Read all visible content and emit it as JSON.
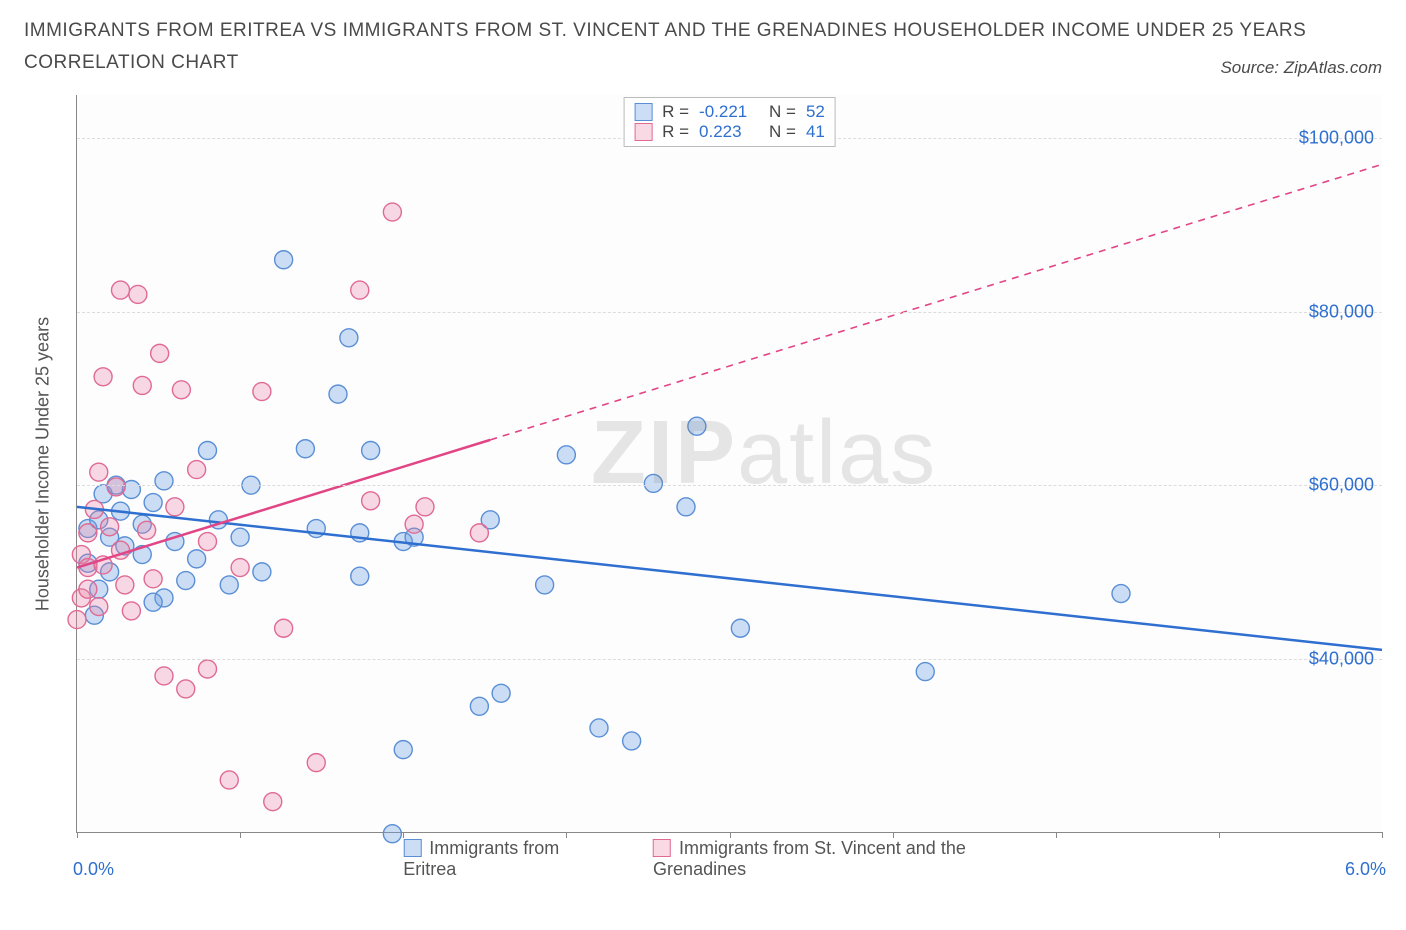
{
  "title_line1": "IMMIGRANTS FROM ERITREA VS IMMIGRANTS FROM ST. VINCENT AND THE GRENADINES HOUSEHOLDER INCOME UNDER 25 YEARS",
  "title_line2": "CORRELATION CHART",
  "source_text": "Source: ZipAtlas.com",
  "y_axis_title": "Householder Income Under 25 years",
  "watermark_bold": "ZIP",
  "watermark_rest": "atlas",
  "x_axis": {
    "min": 0.0,
    "max": 6.0,
    "label_left": "0.0%",
    "label_right": "6.0%",
    "tick_positions": [
      0.0,
      0.75,
      1.5,
      2.25,
      3.0,
      3.75,
      4.5,
      5.25,
      6.0
    ]
  },
  "y_axis": {
    "min": 20000,
    "max": 105000,
    "gridlines": [
      40000,
      60000,
      80000,
      100000
    ],
    "labels": [
      "$40,000",
      "$60,000",
      "$80,000",
      "$100,000"
    ],
    "label_color": "#2f6fd0"
  },
  "grid_color": "#dcdcdc",
  "background_color": "#fdfdfe",
  "axis_color": "#888888",
  "series": [
    {
      "name": "Immigrants from Eritrea",
      "fill": "rgba(110,160,225,0.35)",
      "stroke": "#5a8fd6",
      "line_color": "#2f6fd0",
      "line_width": 2.5,
      "marker_radius": 9,
      "R": "-0.221",
      "N": "52",
      "trend": {
        "x1": 0.0,
        "y1": 57500,
        "x2": 6.0,
        "y2": 41000,
        "dashed": false,
        "solid_until_x": 6.0
      },
      "points": [
        [
          0.05,
          51000
        ],
        [
          0.05,
          55000
        ],
        [
          0.1,
          48000
        ],
        [
          0.1,
          56000
        ],
        [
          0.12,
          59000
        ],
        [
          0.15,
          54000
        ],
        [
          0.15,
          50000
        ],
        [
          0.18,
          60000
        ],
        [
          0.2,
          57000
        ],
        [
          0.22,
          53000
        ],
        [
          0.25,
          59500
        ],
        [
          0.3,
          52000
        ],
        [
          0.3,
          55500
        ],
        [
          0.35,
          58000
        ],
        [
          0.4,
          47000
        ],
        [
          0.4,
          60500
        ],
        [
          0.45,
          53500
        ],
        [
          0.5,
          49000
        ],
        [
          0.55,
          51500
        ],
        [
          0.6,
          64000
        ],
        [
          0.65,
          56000
        ],
        [
          0.7,
          48500
        ],
        [
          0.75,
          54000
        ],
        [
          0.8,
          60000
        ],
        [
          0.85,
          50000
        ],
        [
          0.95,
          86000
        ],
        [
          1.05,
          64200
        ],
        [
          1.1,
          55000
        ],
        [
          1.2,
          70500
        ],
        [
          1.25,
          77000
        ],
        [
          1.3,
          54500
        ],
        [
          1.3,
          49500
        ],
        [
          1.35,
          64000
        ],
        [
          1.45,
          19800
        ],
        [
          1.5,
          53500
        ],
        [
          1.55,
          54000
        ],
        [
          1.5,
          29500
        ],
        [
          1.85,
          34500
        ],
        [
          1.9,
          56000
        ],
        [
          1.95,
          36000
        ],
        [
          2.15,
          48500
        ],
        [
          2.25,
          63500
        ],
        [
          2.4,
          32000
        ],
        [
          2.55,
          30500
        ],
        [
          2.65,
          60200
        ],
        [
          2.8,
          57500
        ],
        [
          2.85,
          66800
        ],
        [
          3.05,
          43500
        ],
        [
          3.9,
          38500
        ],
        [
          4.8,
          47500
        ],
        [
          0.08,
          45000
        ],
        [
          0.35,
          46500
        ]
      ]
    },
    {
      "name": "Immigrants from St. Vincent and the Grenadines",
      "fill": "rgba(235,130,165,0.30)",
      "stroke": "#e06a94",
      "line_color": "#e24585",
      "line_width": 2.5,
      "marker_radius": 9,
      "R": "0.223",
      "N": "41",
      "trend": {
        "x1": 0.0,
        "y1": 50500,
        "x2": 6.0,
        "y2": 97000,
        "dashed": true,
        "solid_until_x": 1.9
      },
      "points": [
        [
          0.0,
          44500
        ],
        [
          0.02,
          47000
        ],
        [
          0.02,
          52000
        ],
        [
          0.05,
          50500
        ],
        [
          0.05,
          48000
        ],
        [
          0.05,
          54500
        ],
        [
          0.08,
          57200
        ],
        [
          0.1,
          61500
        ],
        [
          0.1,
          46000
        ],
        [
          0.12,
          72500
        ],
        [
          0.12,
          50800
        ],
        [
          0.15,
          55200
        ],
        [
          0.18,
          59800
        ],
        [
          0.2,
          82500
        ],
        [
          0.2,
          52500
        ],
        [
          0.22,
          48500
        ],
        [
          0.25,
          45500
        ],
        [
          0.28,
          82000
        ],
        [
          0.3,
          71500
        ],
        [
          0.32,
          54800
        ],
        [
          0.35,
          49200
        ],
        [
          0.38,
          75200
        ],
        [
          0.4,
          38000
        ],
        [
          0.45,
          57500
        ],
        [
          0.48,
          71000
        ],
        [
          0.5,
          36500
        ],
        [
          0.55,
          61800
        ],
        [
          0.6,
          53500
        ],
        [
          0.6,
          38800
        ],
        [
          0.7,
          26000
        ],
        [
          0.75,
          50500
        ],
        [
          0.85,
          70800
        ],
        [
          0.9,
          23500
        ],
        [
          0.95,
          43500
        ],
        [
          1.1,
          28000
        ],
        [
          1.3,
          82500
        ],
        [
          1.35,
          58200
        ],
        [
          1.45,
          91500
        ],
        [
          1.55,
          55500
        ],
        [
          1.6,
          57500
        ],
        [
          1.85,
          54500
        ]
      ]
    }
  ],
  "top_legend": {
    "R_label": "R =",
    "N_label": "N ="
  },
  "bottom_legend_items": [
    {
      "swatch_fill": "rgba(110,160,225,0.35)",
      "swatch_stroke": "#5a8fd6",
      "label": "Immigrants from Eritrea"
    },
    {
      "swatch_fill": "rgba(235,130,165,0.30)",
      "swatch_stroke": "#e06a94",
      "label": "Immigrants from St. Vincent and the Grenadines"
    }
  ]
}
